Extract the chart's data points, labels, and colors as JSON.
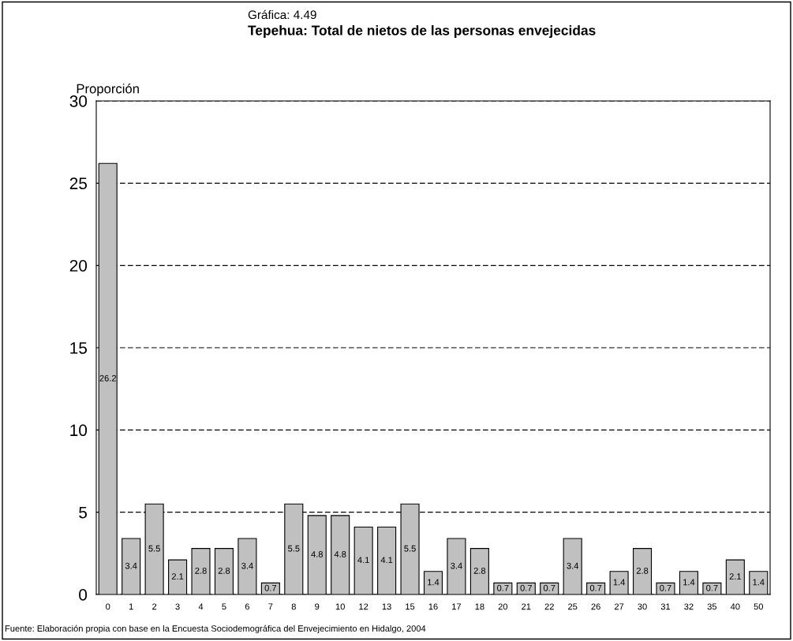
{
  "chart_data": {
    "type": "bar",
    "subtitle": "Gráfica: 4.49",
    "title": "Tepehua: Total de nietos de las personas envejecidas",
    "ylabel": "Proporción",
    "categories": [
      "0",
      "1",
      "2",
      "3",
      "4",
      "5",
      "6",
      "7",
      "8",
      "9",
      "10",
      "12",
      "13",
      "15",
      "16",
      "17",
      "18",
      "20",
      "21",
      "22",
      "25",
      "26",
      "27",
      "30",
      "31",
      "32",
      "35",
      "40",
      "50"
    ],
    "values": [
      26.2,
      3.4,
      5.5,
      2.1,
      2.8,
      2.8,
      3.4,
      0.7,
      5.5,
      4.8,
      4.8,
      4.1,
      4.1,
      5.5,
      1.4,
      3.4,
      2.8,
      0.7,
      0.7,
      0.7,
      3.4,
      0.7,
      1.4,
      2.8,
      0.7,
      1.4,
      0.7,
      2.1,
      1.4
    ],
    "color": "#c0c0c0",
    "ylim": [
      0,
      30
    ],
    "yticks": [
      0,
      5,
      10,
      15,
      20,
      25,
      30
    ],
    "grid": "y",
    "line_style": "dashed",
    "data_labels": true,
    "annotations": [
      "Fuente: Elaboración propia con base en la Encuesta Sociodemográfica del Envejecimiento en Hidalgo, 2004"
    ]
  }
}
